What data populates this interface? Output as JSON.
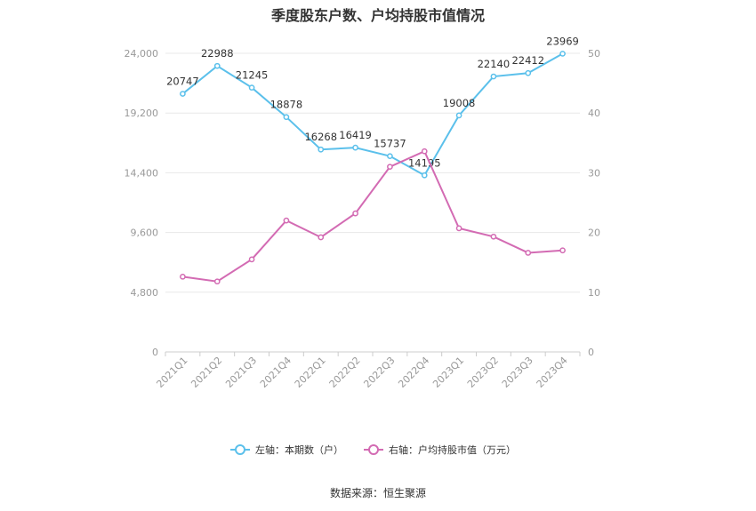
{
  "chart_data": {
    "type": "line",
    "title": "季度股东户数、户均持股市值情况",
    "source": "数据来源：恒生聚源",
    "categories": [
      "2021Q1",
      "2021Q2",
      "2021Q3",
      "2021Q4",
      "2022Q1",
      "2022Q2",
      "2022Q3",
      "2022Q4",
      "2023Q1",
      "2023Q2",
      "2023Q3",
      "2023Q4"
    ],
    "left_axis": {
      "min": 0,
      "max": 24000,
      "ticks": [
        "0",
        "4,800",
        "9,600",
        "14,400",
        "19,200",
        "24,000"
      ],
      "tick_values": [
        0,
        4800,
        9600,
        14400,
        19200,
        24000
      ]
    },
    "right_axis": {
      "min": 0,
      "max": 50,
      "ticks": [
        "0",
        "10",
        "20",
        "30",
        "40",
        "50"
      ],
      "tick_values": [
        0,
        10,
        20,
        30,
        40,
        50
      ]
    },
    "grid": true,
    "legend_position": "bottom",
    "series": [
      {
        "name": "左轴：本期数（户）",
        "axis": "left",
        "color": "#5bc0eb",
        "values": [
          20747,
          22988,
          21245,
          18878,
          16268,
          16419,
          15737,
          14195,
          19008,
          22140,
          22412,
          23969
        ],
        "labels": [
          "20747",
          "22988",
          "21245",
          "18878",
          "16268",
          "16419",
          "15737",
          "14195",
          "19008",
          "22140",
          "22412",
          "23969"
        ]
      },
      {
        "name": "右轴：户均持股市值（万元）",
        "axis": "right",
        "color": "#d36bb3",
        "values": [
          12.6,
          11.8,
          15.5,
          22.0,
          19.2,
          23.2,
          31.0,
          33.6,
          20.7,
          19.3,
          16.6,
          17.0
        ]
      }
    ]
  }
}
